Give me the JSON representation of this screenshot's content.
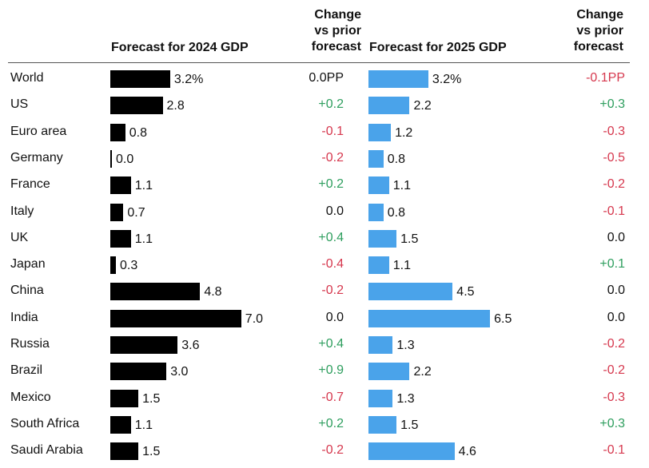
{
  "headers": {
    "forecast_2024": "Forecast for 2024 GDP",
    "change_2024": [
      "Change",
      "vs prior",
      "forecast"
    ],
    "forecast_2025": "Forecast for 2025 GDP",
    "change_2025": [
      "Change",
      "vs prior",
      "forecast"
    ]
  },
  "colors": {
    "bar_2024": "#000000",
    "bar_2025": "#4aa3ea",
    "positive": "#2e9e5e",
    "negative": "#d6384e",
    "neutral": "#111111"
  },
  "chart_data": {
    "type": "bar",
    "categories": [
      "World",
      "US",
      "Euro area",
      "Germany",
      "France",
      "Italy",
      "UK",
      "Japan",
      "China",
      "India",
      "Russia",
      "Brazil",
      "Mexico",
      "South Africa",
      "Saudi Arabia"
    ],
    "series": [
      {
        "name": "Forecast for 2024 GDP",
        "values": [
          3.2,
          2.8,
          0.8,
          0.0,
          1.1,
          0.7,
          1.1,
          0.3,
          4.8,
          7.0,
          3.6,
          3.0,
          1.5,
          1.1,
          1.5
        ]
      },
      {
        "name": "Forecast for 2025 GDP",
        "values": [
          3.2,
          2.2,
          1.2,
          0.8,
          1.1,
          0.8,
          1.5,
          1.1,
          4.5,
          6.5,
          1.3,
          2.2,
          1.3,
          1.5,
          4.6
        ]
      }
    ],
    "value_labels_2024": [
      "3.2%",
      "2.8",
      "0.8",
      "0.0",
      "1.1",
      "0.7",
      "1.1",
      "0.3",
      "4.8",
      "7.0",
      "3.6",
      "3.0",
      "1.5",
      "1.1",
      "1.5"
    ],
    "value_labels_2025": [
      "3.2%",
      "2.2",
      "1.2",
      "0.8",
      "1.1",
      "0.8",
      "1.5",
      "1.1",
      "4.5",
      "6.5",
      "1.3",
      "2.2",
      "1.3",
      "1.5",
      "4.6"
    ],
    "change_2024": [
      "0.0PP",
      "+0.2",
      "-0.1",
      "-0.2",
      "+0.2",
      "0.0",
      "+0.4",
      "-0.4",
      "-0.2",
      "0.0",
      "+0.4",
      "+0.9",
      "-0.7",
      "+0.2",
      "-0.2"
    ],
    "change_2025": [
      "-0.1PP",
      "+0.3",
      "-0.3",
      "-0.5",
      "-0.2",
      "-0.1",
      "0.0",
      "+0.1",
      "0.0",
      "0.0",
      "-0.2",
      "-0.2",
      "-0.3",
      "+0.3",
      "-0.1"
    ]
  }
}
